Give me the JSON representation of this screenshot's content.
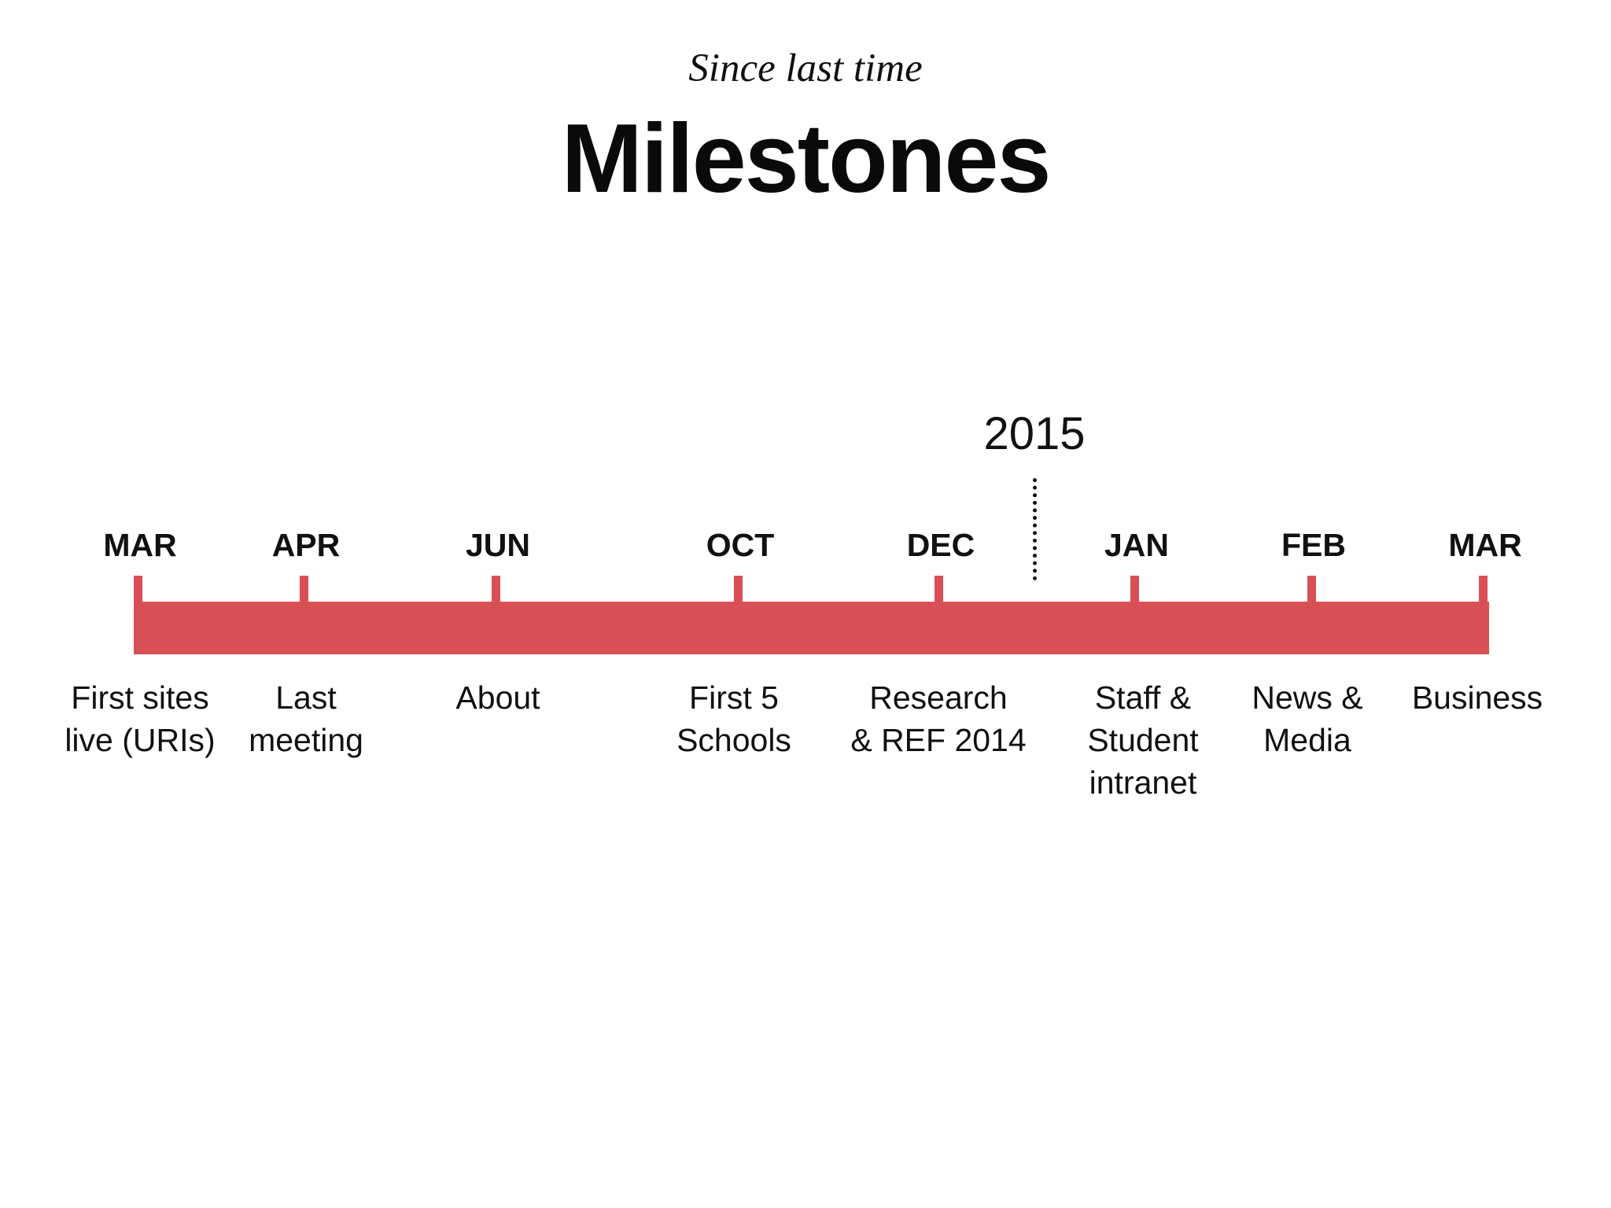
{
  "header": {
    "subtitle": "Since last time",
    "title": "Milestones"
  },
  "timeline": {
    "year_marker": "2015",
    "color": "#d94f56",
    "milestones": [
      {
        "month": "MAR",
        "event": "First sites\nlive (URIs)"
      },
      {
        "month": "APR",
        "event": "Last\nmeeting"
      },
      {
        "month": "JUN",
        "event": "About"
      },
      {
        "month": "OCT",
        "event": "First 5\nSchools"
      },
      {
        "month": "DEC",
        "event": "Research\n& REF 2014"
      },
      {
        "month": "JAN",
        "event": "Staff &\nStudent\nintranet"
      },
      {
        "month": "FEB",
        "event": "News &\nMedia"
      },
      {
        "month": "MAR",
        "event": "Business"
      }
    ]
  }
}
